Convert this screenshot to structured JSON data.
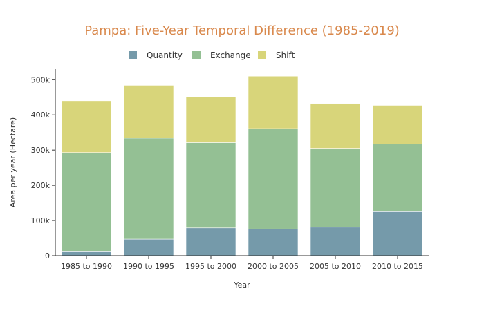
{
  "colors": {
    "title": "#d9894d",
    "quantity": "#759aaa",
    "exchange": "#94c094",
    "shift": "#d8d57a",
    "axis": "#333333"
  },
  "chart_data": {
    "type": "bar",
    "stacked": true,
    "title": "Pampa: Five-Year Temporal Difference (1985-2019)",
    "xlabel": "Year",
    "ylabel": "Area per year (Hectare)",
    "ylim": [
      0,
      530000
    ],
    "yticks": [
      0,
      100000,
      200000,
      300000,
      400000,
      500000
    ],
    "ytick_labels": [
      "0",
      "100k",
      "200k",
      "300k",
      "400k",
      "500k"
    ],
    "categories": [
      "1985 to 1990",
      "1990 to 1995",
      "1995 to 2000",
      "2000 to 2005",
      "2005 to 2010",
      "2010 to 2015"
    ],
    "legend_position": "top",
    "series": [
      {
        "name": "Quantity",
        "color_key": "quantity",
        "values": [
          13000,
          47000,
          79000,
          76000,
          81000,
          125000
        ]
      },
      {
        "name": "Exchange",
        "color_key": "exchange",
        "values": [
          280000,
          287000,
          242000,
          285000,
          224000,
          192000
        ]
      },
      {
        "name": "Shift",
        "color_key": "shift",
        "values": [
          147000,
          150000,
          130000,
          149000,
          127000,
          110000
        ]
      }
    ]
  }
}
